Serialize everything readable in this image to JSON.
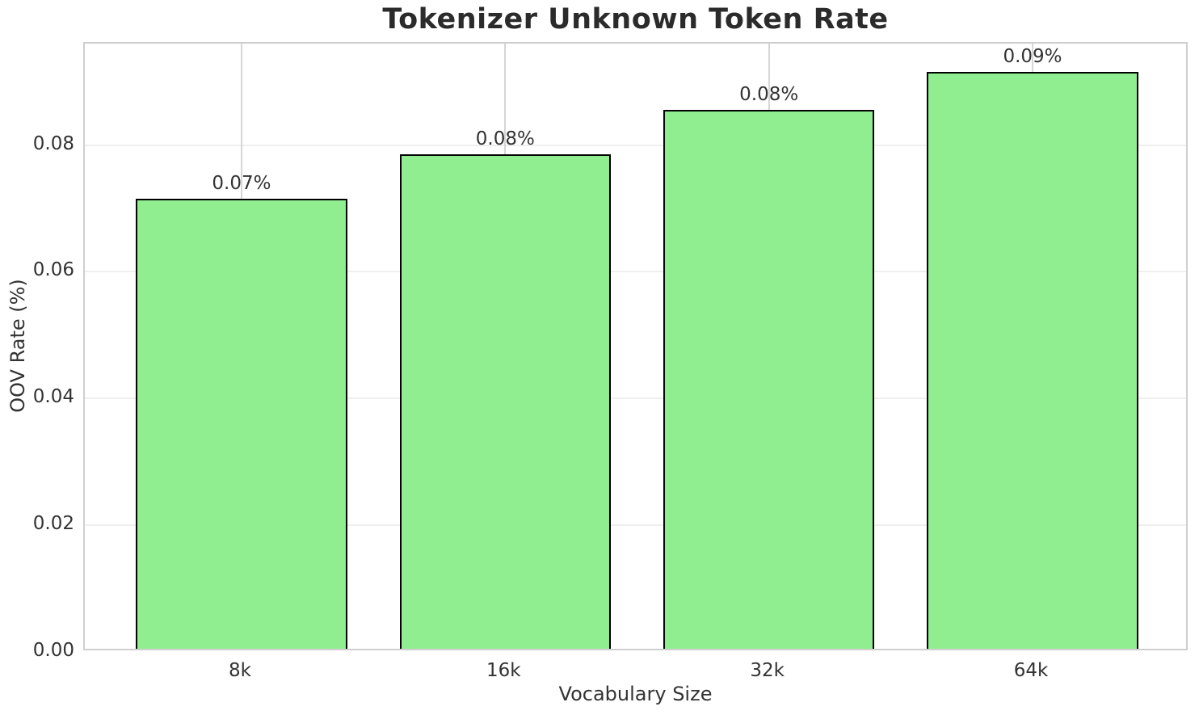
{
  "chart_data": {
    "type": "bar",
    "title": "Tokenizer Unknown Token Rate",
    "xlabel": "Vocabulary Size",
    "ylabel": "OOV Rate (%)",
    "categories": [
      "8k",
      "16k",
      "32k",
      "64k"
    ],
    "values": [
      0.071,
      0.078,
      0.085,
      0.091
    ],
    "bar_labels": [
      "0.07%",
      "0.08%",
      "0.08%",
      "0.09%"
    ],
    "ytick_labels": [
      "0.00",
      "0.02",
      "0.04",
      "0.06",
      "0.08"
    ],
    "ytick_values": [
      0,
      0.02,
      0.04,
      0.06,
      0.08
    ],
    "ylim": [
      0,
      0.096
    ],
    "grid": true,
    "legend_position": "none",
    "bar_color": "#90EE90",
    "bar_edge_color": "#000000"
  }
}
